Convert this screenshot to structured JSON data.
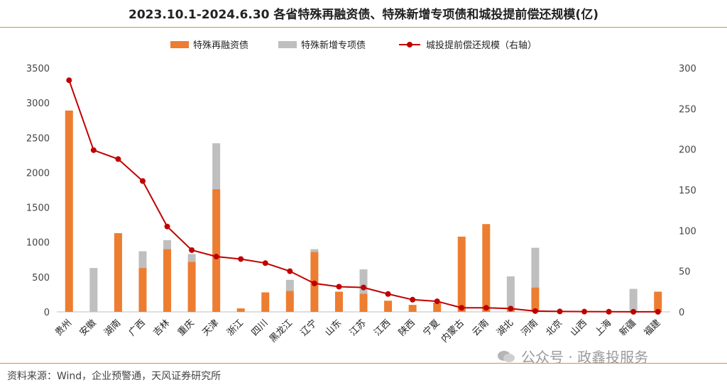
{
  "title": "2023.10.1-2024.6.30 各省特殊再融资债、特殊新增专项债和城投提前偿还规模(亿)",
  "source": "资料来源：Wind，企业预警通，天风证券研究所",
  "watermark": "公众号 · 政鑫投服务",
  "chart_data": {
    "type": "bar",
    "categories": [
      "贵州",
      "安徽",
      "湖南",
      "广西",
      "吉林",
      "重庆",
      "天津",
      "浙江",
      "四川",
      "黑龙江",
      "辽宁",
      "山东",
      "江苏",
      "江西",
      "陕西",
      "宁夏",
      "内蒙古",
      "云南",
      "湖北",
      "河南",
      "北京",
      "山西",
      "上海",
      "新疆",
      "福建"
    ],
    "series": [
      {
        "name": "特殊再融资债",
        "kind": "bar",
        "axis": "left",
        "color": "#ed7d31",
        "values": [
          2890,
          0,
          1130,
          630,
          900,
          720,
          1760,
          50,
          280,
          300,
          860,
          290,
          260,
          160,
          100,
          130,
          1080,
          1260,
          30,
          350,
          0,
          0,
          0,
          10,
          290
        ]
      },
      {
        "name": "特殊新增专项债",
        "kind": "bar-stacked",
        "axis": "left",
        "color": "#bfbfbf",
        "values": [
          0,
          630,
          0,
          240,
          130,
          110,
          660,
          0,
          0,
          160,
          40,
          0,
          350,
          0,
          0,
          0,
          0,
          0,
          480,
          570,
          0,
          0,
          0,
          320,
          0
        ]
      },
      {
        "name": "城投提前偿还规模（右轴）",
        "kind": "line",
        "axis": "right",
        "color": "#c00000",
        "values": [
          285,
          199,
          188,
          161,
          105,
          76,
          68,
          65,
          60,
          50,
          35,
          31,
          30,
          22,
          15,
          13,
          5,
          5,
          4,
          1,
          0.5,
          0.3,
          0.2,
          0.1,
          0.1
        ]
      }
    ],
    "ylim_left": [
      0,
      3500
    ],
    "yticks_left": [
      0,
      500,
      1000,
      1500,
      2000,
      2500,
      3000,
      3500
    ],
    "ylim_right": [
      0,
      300
    ],
    "yticks_right": [
      0,
      50,
      100,
      150,
      200,
      250,
      300
    ],
    "grid": false,
    "legend": "top-center"
  }
}
